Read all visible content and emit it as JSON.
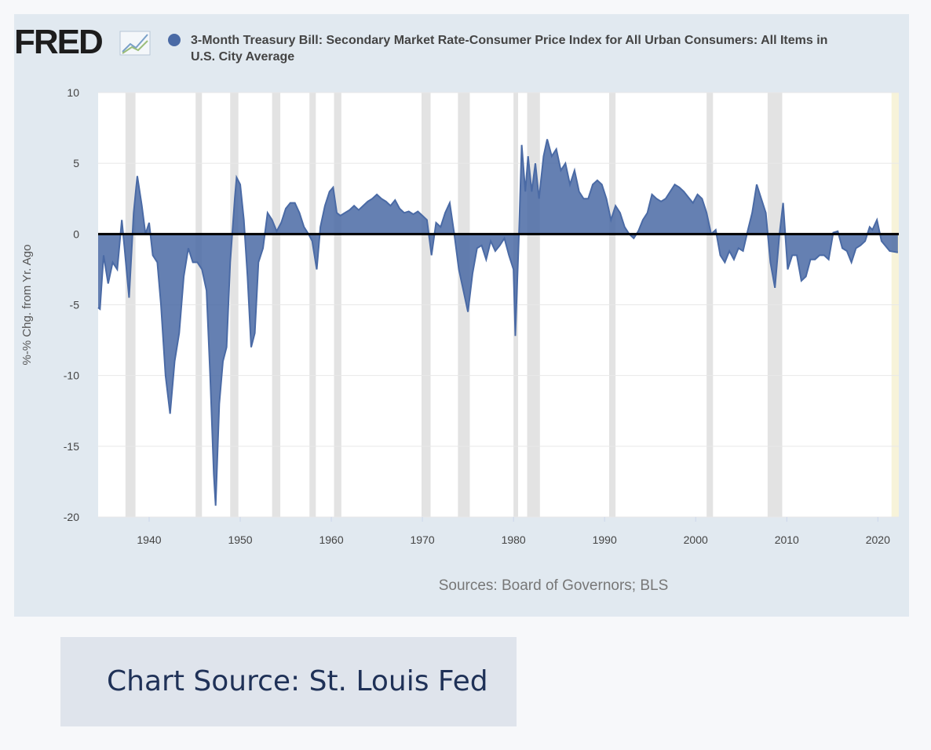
{
  "logo": "FRED",
  "caption": "Chart Source: St. Louis Fed",
  "chart_data": {
    "type": "area",
    "sources": "Sources: Board of Governors; BLS",
    "y_label": "%-% Chg. from Yr. Ago",
    "xlim": [
      1934.4,
      2022.3
    ],
    "xticks": [
      1940,
      1950,
      1960,
      1970,
      1980,
      1990,
      2000,
      2010,
      2020
    ],
    "ylim": [
      -20,
      10
    ],
    "yticks": [
      -20,
      -15,
      -10,
      -5,
      0,
      5,
      10
    ],
    "grid": true,
    "recession_color": "#e3e3e3",
    "recessions": [
      [
        1937.4,
        1938.5
      ],
      [
        1945.1,
        1945.8
      ],
      [
        1948.9,
        1949.8
      ],
      [
        1953.5,
        1954.4
      ],
      [
        1957.6,
        1958.3
      ],
      [
        1960.3,
        1961.1
      ],
      [
        1969.9,
        1970.9
      ],
      [
        1973.9,
        1975.2
      ],
      [
        1980.0,
        1980.5
      ],
      [
        1981.5,
        1982.9
      ],
      [
        1990.5,
        1991.2
      ],
      [
        2001.2,
        2001.9
      ],
      [
        2007.9,
        2009.5
      ]
    ],
    "highlight_color": "#f7f3d9",
    "highlight": [
      2021.5,
      2022.3
    ],
    "series": [
      {
        "name": "3-Month Treasury Bill: Secondary Market Rate-Consumer Price Index for All Urban Consumers: All Items in U.S. City Average",
        "color": "#4a6aa5",
        "x": [
          1934.4,
          1934.6,
          1935,
          1935.5,
          1936,
          1936.5,
          1937,
          1937.3,
          1937.8,
          1938.3,
          1938.7,
          1939.2,
          1939.6,
          1940,
          1940.4,
          1940.9,
          1941.3,
          1941.8,
          1942.3,
          1942.8,
          1943.3,
          1943.8,
          1944.3,
          1944.8,
          1945.3,
          1945.8,
          1946.3,
          1946.7,
          1947.1,
          1947.3,
          1947.7,
          1948.1,
          1948.5,
          1948.9,
          1949.4,
          1949.6,
          1950,
          1950.4,
          1950.8,
          1951.2,
          1951.6,
          1952,
          1952.5,
          1953,
          1953.5,
          1954,
          1954.5,
          1955,
          1955.5,
          1956,
          1956.5,
          1957,
          1957.5,
          1957.9,
          1958.4,
          1958.8,
          1959.3,
          1959.8,
          1960.2,
          1960.6,
          1961,
          1961.5,
          1962,
          1962.5,
          1963,
          1963.5,
          1964,
          1964.5,
          1965,
          1965.5,
          1966,
          1966.5,
          1967,
          1967.5,
          1968,
          1968.5,
          1969,
          1969.5,
          1970,
          1970.5,
          1971,
          1971.5,
          1972,
          1972.5,
          1973,
          1973.5,
          1974,
          1974.5,
          1975,
          1975.5,
          1976,
          1976.5,
          1977,
          1977.5,
          1978,
          1978.5,
          1979,
          1979.5,
          1980,
          1980.2,
          1980.6,
          1980.9,
          1981.3,
          1981.6,
          1982,
          1982.4,
          1982.8,
          1983.3,
          1983.7,
          1984.2,
          1984.7,
          1985.2,
          1985.7,
          1986.2,
          1986.7,
          1987.2,
          1987.7,
          1988.2,
          1988.7,
          1989.2,
          1989.7,
          1990.2,
          1990.7,
          1991.2,
          1991.7,
          1992.2,
          1992.7,
          1993.2,
          1993.7,
          1994.2,
          1994.7,
          1995.2,
          1995.7,
          1996.2,
          1996.7,
          1997.2,
          1997.7,
          1998.2,
          1998.7,
          1999.2,
          1999.7,
          2000.2,
          2000.7,
          2001.2,
          2001.7,
          2002.2,
          2002.7,
          2003.2,
          2003.7,
          2004.2,
          2004.7,
          2005.2,
          2005.7,
          2006.2,
          2006.7,
          2007.2,
          2007.7,
          2008.2,
          2008.7,
          2009.2,
          2009.6,
          2010.1,
          2010.6,
          2011.1,
          2011.6,
          2012.1,
          2012.6,
          2013.1,
          2013.6,
          2014.1,
          2014.6,
          2015.1,
          2015.6,
          2016.1,
          2016.6,
          2017.1,
          2017.6,
          2018.1,
          2018.6,
          2019.1,
          2019.4,
          2019.9,
          2020.4,
          2021.3,
          2022.2
        ],
        "values": [
          -5.2,
          -5.3,
          -1.5,
          -3.5,
          -2,
          -2.5,
          1,
          -1,
          -4.5,
          1.5,
          4.1,
          2,
          0,
          0.8,
          -1.5,
          -2,
          -5,
          -10,
          -12.7,
          -9,
          -7,
          -3,
          -1,
          -2,
          -2,
          -2.5,
          -4,
          -10,
          -17,
          -19.2,
          -12,
          -9,
          -8,
          -2,
          2.5,
          4,
          3.5,
          1,
          -3,
          -8,
          -7,
          -2,
          -1,
          1.5,
          1,
          0.2,
          0.8,
          1.8,
          2.2,
          2.2,
          1.5,
          0.5,
          0,
          -0.5,
          -2.5,
          0.5,
          2,
          3,
          3.3,
          1.5,
          1.3,
          1.5,
          1.7,
          2,
          1.7,
          2,
          2.3,
          2.5,
          2.8,
          2.5,
          2.3,
          2,
          2.4,
          1.8,
          1.5,
          1.6,
          1.4,
          1.6,
          1.3,
          1,
          -1.5,
          0.8,
          0.5,
          1.5,
          2.2,
          0,
          -2.5,
          -4,
          -5.5,
          -2.8,
          -1,
          -0.8,
          -1.8,
          -0.5,
          -1.2,
          -0.8,
          -0.3,
          -1.5,
          -2.5,
          -7.2,
          0,
          6.3,
          3,
          5.5,
          3,
          5,
          2.5,
          5.5,
          6.7,
          5.5,
          6,
          4.5,
          5,
          3.5,
          4.5,
          3,
          2.5,
          2.5,
          3.5,
          3.8,
          3.5,
          2.5,
          1,
          2,
          1.5,
          0.5,
          0,
          -0.3,
          0.2,
          1,
          1.5,
          2.8,
          2.5,
          2.3,
          2.5,
          3,
          3.5,
          3.3,
          3,
          2.6,
          2.2,
          2.8,
          2.5,
          1.5,
          0,
          0.3,
          -1.5,
          -2,
          -1.2,
          -1.8,
          -1,
          -1.2,
          0.2,
          1.5,
          3.5,
          2.5,
          1.5,
          -2,
          -3.8,
          0,
          2.2,
          -2.5,
          -1.5,
          -1.5,
          -3.3,
          -3,
          -1.8,
          -1.8,
          -1.5,
          -1.5,
          -1.8,
          0.1,
          0.2,
          -1,
          -1.2,
          -2,
          -1,
          -0.8,
          -0.5,
          0.5,
          0.3,
          1,
          -0.5,
          -1.2,
          -1.3
        ]
      }
    ]
  }
}
